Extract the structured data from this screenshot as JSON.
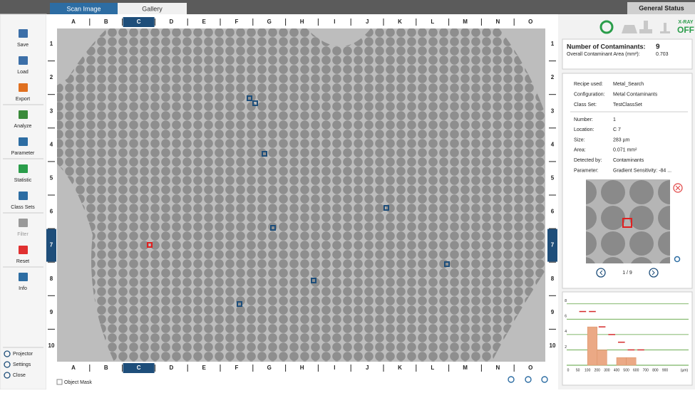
{
  "tabs": [
    "Scan Image",
    "Gallery"
  ],
  "general_status": "General Status",
  "sidebar": [
    "Save",
    "Load",
    "Export",
    "Analyze",
    "Parameter",
    "Statistic",
    "Class Sets",
    "Filter",
    "Reset",
    "Info"
  ],
  "sidebar_bottom": [
    "Projector",
    "Settings",
    "Close"
  ],
  "columns": [
    "A",
    "B",
    "C",
    "D",
    "E",
    "F",
    "G",
    "H",
    "I",
    "J",
    "K",
    "L",
    "M",
    "N",
    "O"
  ],
  "rows": [
    "1",
    "2",
    "3",
    "4",
    "5",
    "6",
    "7",
    "8",
    "9",
    "10"
  ],
  "selected": {
    "column": "C",
    "row": "7"
  },
  "object_mask": "Object Mask",
  "xray": {
    "label": "X-RAY",
    "state": "OFF"
  },
  "summary": {
    "count_label": "Number of Contaminants:",
    "count": 9,
    "area_label": "Overall Contaminant Area (mm²):",
    "area": 0.703
  },
  "recipe": [
    [
      "Recipe used:",
      "Metal_Search"
    ],
    [
      "Configuration:",
      "Metal Contaminants"
    ],
    [
      "Class Set:",
      "TestClassSet"
    ]
  ],
  "details": [
    [
      "Number:",
      "1"
    ],
    [
      "Location:",
      "C 7"
    ],
    [
      "Size:",
      "283 µm"
    ],
    [
      "Area:",
      "0.071 mm²"
    ],
    [
      "Detected by:",
      "Contaminants"
    ],
    [
      "Parameter:",
      "Gradient Sensitivity: -84 ..."
    ]
  ],
  "pager": "1 / 9",
  "chart_data": {
    "type": "histogram",
    "bins": [
      0,
      50,
      100,
      200,
      300,
      400,
      500,
      600,
      700,
      800,
      900
    ],
    "values": [
      0,
      0,
      5,
      2,
      0,
      1,
      1,
      0,
      0,
      0
    ],
    "limits": [
      null,
      7,
      7,
      5,
      4,
      3,
      2,
      2,
      null,
      null
    ],
    "x_unit": "(µm)",
    "ylim": [
      0,
      9
    ],
    "yticks": [
      2,
      4,
      6,
      8
    ],
    "grid": true,
    "color": "#eba985",
    "limit_color": "#d42a2a",
    "grid_color": "#5aa03c"
  }
}
